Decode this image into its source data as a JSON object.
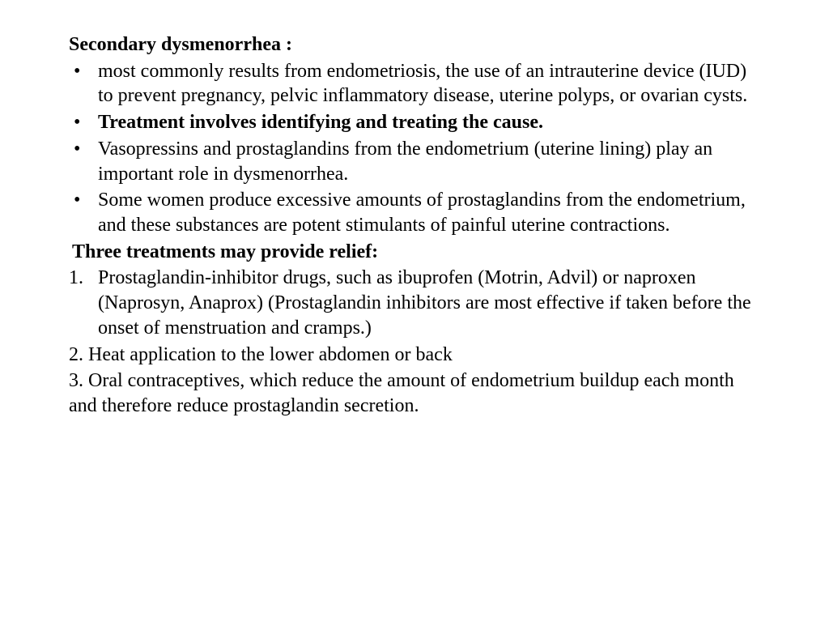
{
  "background_color": "#ffffff",
  "text_color": "#000000",
  "font_family": "Times New Roman",
  "base_fontsize": 24,
  "title": "Secondary dysmenorrhea :",
  "bullets": [
    {
      "text": "most commonly results from endometriosis, the use of an intrauterine device (IUD) to prevent pregnancy, pelvic inflammatory disease, uterine polyps, or ovarian cysts.",
      "bold": false
    },
    {
      "text": "Treatment involves identifying and treating the cause.",
      "bold": true
    },
    {
      "text": "Vasopressins and prostaglandins from the endometrium (uterine lining) play an important role in dysmenorrhea.",
      "bold": false
    },
    {
      "text": "Some women produce excessive amounts of prostaglandins from the endometrium, and these substances are potent stimulants of painful uterine contractions.",
      "bold": false
    }
  ],
  "subheading": "Three treatments may provide relief:",
  "numbered_first": {
    "num": "1.",
    "text": "Prostaglandin-inhibitor drugs, such as ibuprofen (Motrin, Advil) or naproxen (Naprosyn, Anaprox) (Prostaglandin inhibitors are most effective if taken before the onset of menstruation and cramps.)"
  },
  "plain_lines": [
    "2. Heat application to the lower abdomen or back",
    "3. Oral contraceptives, which reduce the amount of endometrium buildup each month and therefore reduce prostaglandin secretion."
  ]
}
